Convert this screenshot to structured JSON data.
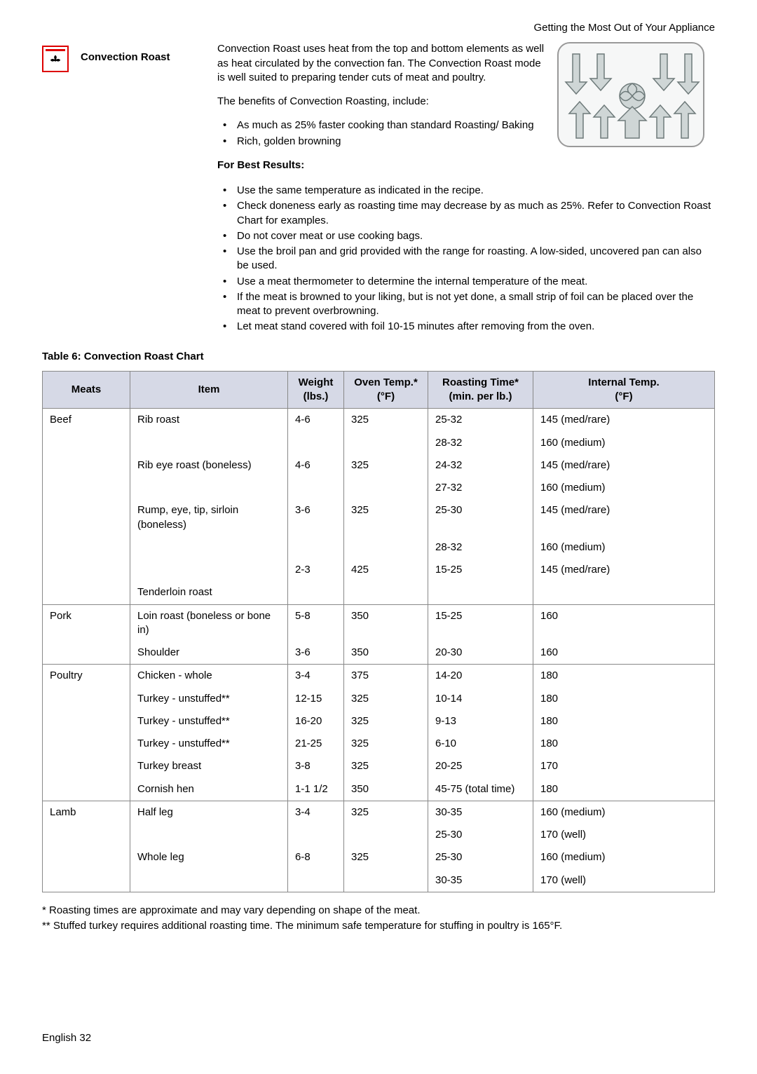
{
  "header": {
    "right": "Getting the Most Out of Your Appliance"
  },
  "mode": {
    "title": "Convection Roast",
    "para1": "Convection Roast uses heat from the top and bottom elements as well as heat circulated by the convection fan. The Convection Roast mode is well suited to preparing tender cuts of meat and poultry.",
    "para2": "The benefits of Convection Roasting, include:",
    "benefit1": "As much as 25% faster cooking than standard Roasting/ Baking",
    "benefit2": "Rich, golden browning",
    "best_results_head": "For Best Results:",
    "tip1": "Use the same temperature as indicated in the recipe.",
    "tip2": "Check doneness early as roasting time may decrease by as much as 25%. Refer to Convection Roast Chart for examples.",
    "tip3": "Do not cover meat or use cooking bags.",
    "tip4": "Use the broil pan and grid provided with the range for roasting. A low-sided, uncovered pan can also be used.",
    "tip5": "Use a meat thermometer to determine the internal temperature of the meat.",
    "tip6": "If the meat is browned to your liking, but is not yet done, a small strip of foil can be placed over the meat to prevent overbrowning.",
    "tip7": "Let meat stand covered with foil 10-15 minutes after removing from the oven."
  },
  "table": {
    "title": "Table 6: Convection Roast Chart",
    "headers": {
      "meats": "Meats",
      "item": "Item",
      "weight": "Weight (lbs.)",
      "temp_a": "Oven Temp.*",
      "temp_b": "(°F)",
      "time_a": "Roasting Time*",
      "time_b": "(min. per lb.)",
      "internal_a": "Internal Temp.",
      "internal_b": "(°F)"
    },
    "rows": [
      {
        "group_start": true,
        "meats": "Beef",
        "item": "Rib roast",
        "weight": "4-6",
        "temp": "325",
        "time": "25-32",
        "internal": "145 (med/rare)"
      },
      {
        "meats": "",
        "item": "",
        "weight": "",
        "temp": "",
        "time": "28-32",
        "internal": "160 (medium)"
      },
      {
        "meats": "",
        "item": "Rib eye roast (boneless)",
        "weight": "4-6",
        "temp": "325",
        "time": "24-32",
        "internal": "145 (med/rare)"
      },
      {
        "meats": "",
        "item": "",
        "weight": "",
        "temp": "",
        "time": "27-32",
        "internal": "160 (medium)"
      },
      {
        "meats": "",
        "item": "Rump, eye, tip, sirloin (boneless)",
        "weight": "3-6",
        "temp": "325",
        "time": "25-30",
        "internal": "145 (med/rare)"
      },
      {
        "meats": "",
        "item": "",
        "weight": "",
        "temp": "",
        "time": "28-32",
        "internal": "160 (medium)"
      },
      {
        "meats": "",
        "item": "",
        "weight": "2-3",
        "temp": "425",
        "time": "15-25",
        "internal": "145 (med/rare)"
      },
      {
        "meats": "",
        "item": "Tenderloin roast",
        "weight": "",
        "temp": "",
        "time": "",
        "internal": ""
      },
      {
        "group_start": true,
        "meats": "Pork",
        "item": "Loin roast (boneless or bone in)",
        "weight": "5-8",
        "temp": "350",
        "time": "15-25",
        "internal": "160"
      },
      {
        "meats": "",
        "item": "Shoulder",
        "weight": "3-6",
        "temp": "350",
        "time": "20-30",
        "internal": "160"
      },
      {
        "group_start": true,
        "meats": "Poultry",
        "item": "Chicken - whole",
        "weight": "3-4",
        "temp": "375",
        "time": "14-20",
        "internal": "180"
      },
      {
        "meats": "",
        "item": "Turkey - unstuffed**",
        "weight": "12-15",
        "temp": "325",
        "time": "10-14",
        "internal": "180"
      },
      {
        "meats": "",
        "item": "Turkey - unstuffed**",
        "weight": "16-20",
        "temp": "325",
        "time": "9-13",
        "internal": "180"
      },
      {
        "meats": "",
        "item": "Turkey - unstuffed**",
        "weight": "21-25",
        "temp": "325",
        "time": "6-10",
        "internal": "180"
      },
      {
        "meats": "",
        "item": "Turkey breast",
        "weight": "3-8",
        "temp": "325",
        "time": "20-25",
        "internal": "170"
      },
      {
        "meats": "",
        "item": "Cornish hen",
        "weight": "1-1 1/2",
        "temp": "350",
        "time": "45-75 (total time)",
        "internal": "180"
      },
      {
        "group_start": true,
        "meats": "Lamb",
        "item": "Half leg",
        "weight": "3-4",
        "temp": "325",
        "time": "30-35",
        "internal": "160 (medium)"
      },
      {
        "meats": "",
        "item": "",
        "weight": "",
        "temp": "",
        "time": "25-30",
        "internal": "170 (well)"
      },
      {
        "meats": "",
        "item": "Whole leg",
        "weight": "6-8",
        "temp": "325",
        "time": "25-30",
        "internal": "160 (medium)"
      },
      {
        "meats": "",
        "item": "",
        "weight": "",
        "temp": "",
        "time": "30-35",
        "internal": "170 (well)"
      }
    ]
  },
  "footnotes": {
    "f1": "* Roasting times are approximate and may vary depending on shape of the meat.",
    "f2": "** Stuffed turkey requires additional roasting time. The minimum safe temperature for stuffing in poultry is 165°F."
  },
  "footer": {
    "page": "English 32"
  },
  "style": {
    "header_bg": "#d6d9e6",
    "border_color": "#888888",
    "icon_border": "#d00000"
  }
}
